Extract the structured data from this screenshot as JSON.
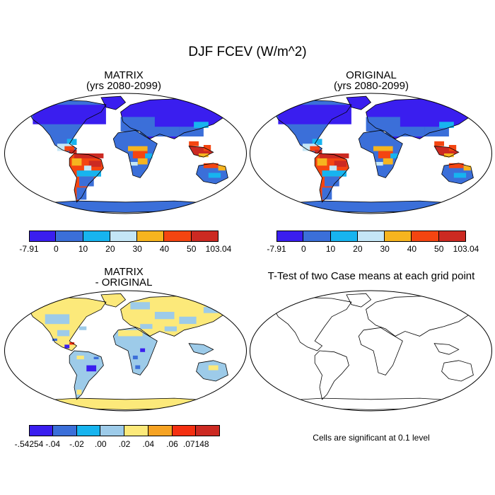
{
  "title": "DJF FCEV (W/m^2)",
  "panels": {
    "matrix": {
      "title_line1": "MATRIX",
      "title_line2": "(yrs 2080-2099)"
    },
    "original": {
      "title_line1": "ORIGINAL",
      "title_line2": "(yrs 2080-2099)"
    },
    "difference": {
      "title_line1": "MATRIX",
      "title_line2": "- ORIGINAL"
    },
    "ttest": {
      "title_line1": "T-Test of two Case means at each grid point",
      "note": "Cells are significant at 0.1 level"
    }
  },
  "colorbars": {
    "main": {
      "colors": [
        "#3a1eef",
        "#3b6fd9",
        "#17b4ef",
        "#c4e6f6",
        "#f6b41f",
        "#f44511",
        "#cc2a22"
      ],
      "labels": [
        "-7.91",
        "0",
        "10",
        "20",
        "30",
        "40",
        "50",
        "103.04"
      ]
    },
    "diff": {
      "colors": [
        "#3a1eef",
        "#3b6fd9",
        "#17b4ef",
        "#9dcbe9",
        "#fce97a",
        "#f6a323",
        "#f43011",
        "#cc2a22"
      ],
      "labels": [
        "-.54254",
        "-.04",
        "-.02",
        ".00",
        ".02",
        ".04",
        ".06",
        ".07148"
      ]
    }
  }
}
